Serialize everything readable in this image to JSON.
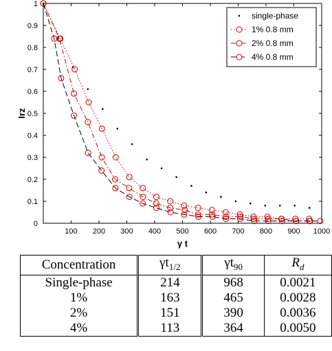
{
  "chart_data": {
    "type": "scatter",
    "xlabel": "γ t",
    "ylabel": "Irz",
    "xlim": [
      0,
      1000
    ],
    "ylim": [
      0,
      1
    ],
    "xticks": [
      100,
      200,
      300,
      400,
      500,
      600,
      700,
      800,
      900,
      1000
    ],
    "yticks": [
      0,
      0.1,
      0.2,
      0.3,
      0.4,
      0.5,
      0.6,
      0.7,
      0.8,
      0.9,
      1
    ],
    "grid": false,
    "legend_position": "top-right",
    "series": [
      {
        "name": "single-phase",
        "style": "dots",
        "color": "#000000",
        "x": [
          0,
          53,
          106,
          160,
          213,
          266,
          319,
          372,
          425,
          478,
          532,
          585,
          638,
          691,
          744,
          797,
          850,
          903,
          956
        ],
        "y": [
          1,
          0.84,
          0.71,
          0.61,
          0.52,
          0.43,
          0.36,
          0.29,
          0.25,
          0.21,
          0.17,
          0.14,
          0.12,
          0.1,
          0.09,
          0.08,
          0.08,
          0.08,
          0.07
        ]
      },
      {
        "name": "1% 0.8 mm",
        "style": "dotted",
        "color": "#cc0000",
        "x": [
          0,
          61,
          113,
          163,
          211,
          260,
          309,
          357,
          406,
          456,
          506,
          556,
          606,
          655,
          706,
          755,
          805,
          855,
          906,
          955
        ],
        "y": [
          1,
          0.84,
          0.7,
          0.55,
          0.43,
          0.3,
          0.21,
          0.16,
          0.12,
          0.1,
          0.08,
          0.07,
          0.06,
          0.05,
          0.04,
          0.03,
          0.03,
          0.02,
          0.02,
          0.02
        ]
      },
      {
        "name": "2% 0.8 mm",
        "style": "dashdot",
        "color": "#cc0000",
        "x": [
          0,
          58,
          110,
          160,
          210,
          258,
          308,
          358,
          406,
          456,
          508,
          556,
          606,
          656,
          708,
          756,
          808,
          856,
          908,
          956
        ],
        "y": [
          1,
          0.84,
          0.59,
          0.46,
          0.3,
          0.2,
          0.16,
          0.12,
          0.09,
          0.07,
          0.06,
          0.04,
          0.04,
          0.03,
          0.03,
          0.02,
          0.02,
          0.02,
          0.01,
          0.01
        ]
      },
      {
        "name": "4% 0.8 mm",
        "style": "dashed",
        "color": "#000000",
        "marker_color": "#cc0000",
        "x": [
          0,
          39,
          64,
          110,
          161,
          209,
          259,
          309,
          357,
          406,
          457,
          506,
          557,
          608,
          656,
          707,
          758,
          808,
          858,
          908,
          958,
          995
        ],
        "y": [
          1,
          0.84,
          0.66,
          0.49,
          0.32,
          0.24,
          0.16,
          0.12,
          0.09,
          0.07,
          0.05,
          0.04,
          0.03,
          0.03,
          0.02,
          0.02,
          0.01,
          0.01,
          0.01,
          0.01,
          0.01,
          0.01
        ]
      }
    ]
  },
  "table": {
    "headers": [
      "Concentration",
      "γt1/2",
      "γt90",
      "R_d"
    ],
    "header_parts": {
      "t_half_main": "γt",
      "t_half_sub": "1/2",
      "t90_main": "γt",
      "t90_sub": "90",
      "rd_main": "R",
      "rd_sub": "d"
    },
    "rows": [
      {
        "concentration": "Single-phase",
        "t_half": "214",
        "t90": "968",
        "rd": "0.0021"
      },
      {
        "concentration": "1%",
        "t_half": "163",
        "t90": "465",
        "rd": "0.0028"
      },
      {
        "concentration": "2%",
        "t_half": "151",
        "t90": "390",
        "rd": "0.0036"
      },
      {
        "concentration": "4%",
        "t_half": "113",
        "t90": "364",
        "rd": "0.0050"
      }
    ]
  }
}
